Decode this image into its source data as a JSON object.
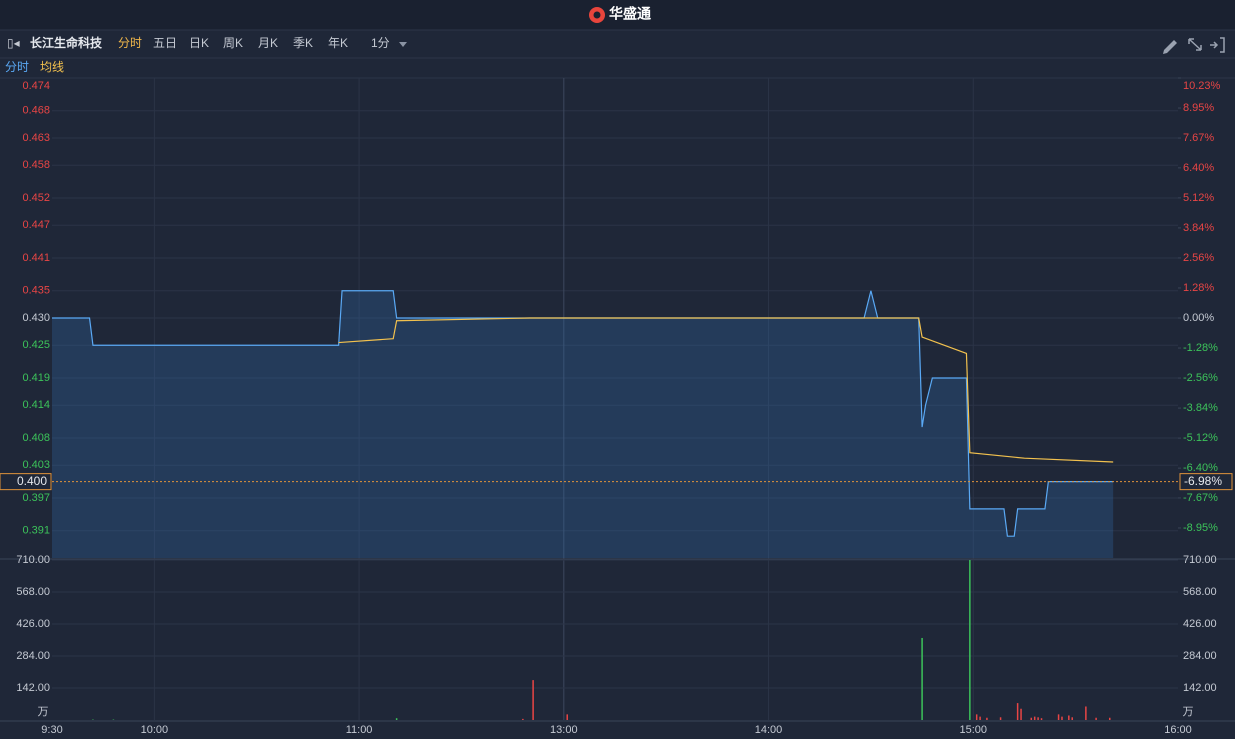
{
  "header": {
    "brand": "华盛通"
  },
  "toolbar": {
    "stock_name": "长江生命科技",
    "tabs": [
      "分时",
      "五日",
      "日K",
      "周K",
      "月K",
      "季K",
      "年K"
    ],
    "interval": "1分"
  },
  "chart_data": [
    {
      "type": "line",
      "series": [
        {
          "name": "分时",
          "color": "#5aa9f5",
          "x": [
            0,
            11,
            12,
            84,
            85,
            100,
            101,
            238,
            240,
            242,
            254,
            255,
            256,
            258,
            268,
            269,
            279,
            280,
            282,
            283,
            291,
            292,
            311
          ],
          "values": [
            0.43,
            0.43,
            0.425,
            0.425,
            0.435,
            0.435,
            0.43,
            0.43,
            0.435,
            0.43,
            0.43,
            0.41,
            0.414,
            0.419,
            0.419,
            0.395,
            0.395,
            0.39,
            0.39,
            0.395,
            0.395,
            0.4,
            0.4
          ]
        },
        {
          "name": "均线",
          "color": "#f2c14e",
          "x": [
            84,
            100,
            101,
            140,
            254,
            255,
            268,
            269,
            285,
            311
          ],
          "values": [
            0.4255,
            0.4262,
            0.4295,
            0.43,
            0.43,
            0.4265,
            0.4235,
            0.4053,
            0.4043,
            0.4036
          ]
        }
      ],
      "xlim": [
        0,
        330
      ],
      "xticks": [
        {
          "value": 0,
          "label": "9:30"
        },
        {
          "value": 30,
          "label": "10:00"
        },
        {
          "value": 90,
          "label": "11:00"
        },
        {
          "value": 150,
          "label": "13:00"
        },
        {
          "value": 210,
          "label": "14:00"
        },
        {
          "value": 270,
          "label": "15:00"
        },
        {
          "value": 330,
          "label": "16:00"
        }
      ],
      "ylim": [
        0.386,
        0.474
      ],
      "yticks": [
        0.474,
        0.468,
        0.463,
        0.458,
        0.452,
        0.447,
        0.441,
        0.435,
        {
          "value": 0.43,
          "label": "0.430"
        },
        0.425,
        0.419,
        0.414,
        0.408,
        0.403,
        0.397,
        0.391
      ],
      "y2lim": [
        -10.23,
        10.23
      ],
      "y2ticks": [
        {
          "value": 10.23,
          "label": "10.23%"
        },
        {
          "value": 8.95,
          "label": "8.95%"
        },
        {
          "value": 7.67,
          "label": "7.67%"
        },
        {
          "value": 6.4,
          "label": "6.40%"
        },
        {
          "value": 5.12,
          "label": "5.12%"
        },
        {
          "value": 3.84,
          "label": "3.84%"
        },
        {
          "value": 2.56,
          "label": "2.56%"
        },
        {
          "value": 1.28,
          "label": "1.28%"
        },
        {
          "value": 0,
          "label": "0.00%"
        },
        {
          "value": -1.28,
          "label": "-1.28%"
        },
        {
          "value": -2.56,
          "label": "-2.56%"
        },
        {
          "value": -3.84,
          "label": "-3.84%"
        },
        {
          "value": -5.12,
          "label": "-5.12%"
        },
        {
          "value": -6.4,
          "label": "-6.40%"
        },
        {
          "value": -7.67,
          "label": "-7.67%"
        },
        {
          "value": -8.95,
          "label": "-8.95%"
        }
      ],
      "current_price": {
        "value": 0.4,
        "label": "0.400"
      },
      "current_change": {
        "value": -6.98,
        "label": "-6.98%"
      },
      "grid": true,
      "area_fill": true
    },
    {
      "type": "bar",
      "unit": "万",
      "x": [
        12,
        18,
        101,
        138,
        141,
        151,
        255,
        269,
        271,
        272,
        274,
        278,
        283,
        284,
        287,
        288,
        289,
        290,
        295,
        296,
        298,
        299,
        303,
        306,
        310
      ],
      "values": [
        2,
        2,
        8,
        5,
        177,
        25,
        364,
        710,
        25,
        15,
        10,
        12,
        75,
        50,
        10,
        15,
        12,
        8,
        25,
        15,
        20,
        12,
        60,
        10,
        10
      ],
      "colors": [
        "#3cc35a",
        "#3cc35a",
        "#3cc35a",
        "#e84545",
        "#e84545",
        "#e84545",
        "#3cc35a",
        "#3cc35a",
        "#e84545",
        "#e84545",
        "#e84545",
        "#e84545",
        "#e84545",
        "#e84545",
        "#e84545",
        "#e84545",
        "#e84545",
        "#e84545",
        "#e84545",
        "#e84545",
        "#e84545",
        "#e84545",
        "#e84545",
        "#e84545",
        "#e84545"
      ],
      "ylim": [
        0,
        710
      ],
      "yticks": [
        {
          "value": 710,
          "label": "710.00"
        },
        {
          "value": 568,
          "label": "568.00"
        },
        {
          "value": 426,
          "label": "426.00"
        },
        {
          "value": 284,
          "label": "284.00"
        },
        {
          "value": 142,
          "label": "142.00"
        }
      ],
      "grid": true
    }
  ]
}
